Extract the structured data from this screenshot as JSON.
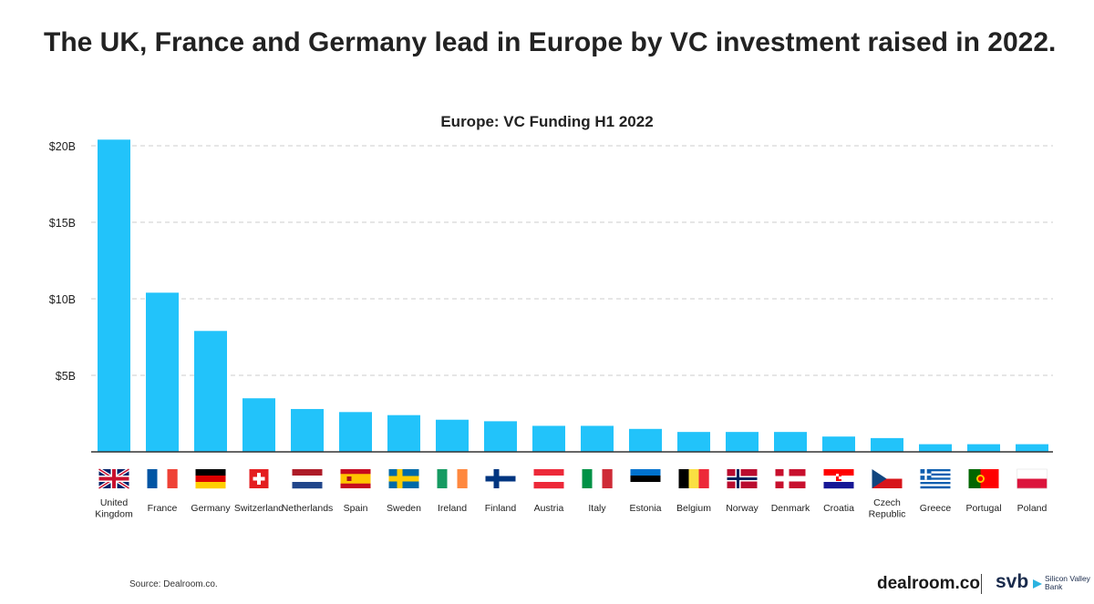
{
  "headline": "The UK, France and Germany lead in Europe by VC investment raised in 2022.",
  "footer": {
    "source": "Source: Dealroom.co.",
    "brand_primary": "dealroom.co",
    "brand_secondary": "svb",
    "brand_secondary_text": "Silicon Valley Bank"
  },
  "colors": {
    "bar": "#22C3FA",
    "grid": "#cccccc",
    "axis": "#333333"
  },
  "chart_data": {
    "type": "bar",
    "title": "Europe: VC Funding H1 2022",
    "xlabel": "",
    "ylabel": "",
    "ylim": [
      0,
      21
    ],
    "yticks": [
      5,
      10,
      15,
      20
    ],
    "ytick_labels": [
      "$5B",
      "$10B",
      "$15B",
      "$20B"
    ],
    "grid": true,
    "categories": [
      {
        "label": "United\nKingdom",
        "flag": "uk"
      },
      {
        "label": "France",
        "flag": "france"
      },
      {
        "label": "Germany",
        "flag": "germany"
      },
      {
        "label": "Switzerland",
        "flag": "switzerland"
      },
      {
        "label": "Netherlands",
        "flag": "netherlands"
      },
      {
        "label": "Spain",
        "flag": "spain"
      },
      {
        "label": "Sweden",
        "flag": "sweden"
      },
      {
        "label": "Ireland",
        "flag": "ireland"
      },
      {
        "label": "Finland",
        "flag": "finland"
      },
      {
        "label": "Austria",
        "flag": "austria"
      },
      {
        "label": "Italy",
        "flag": "italy"
      },
      {
        "label": "Estonia",
        "flag": "estonia"
      },
      {
        "label": "Belgium",
        "flag": "belgium"
      },
      {
        "label": "Norway",
        "flag": "norway"
      },
      {
        "label": "Denmark",
        "flag": "denmark"
      },
      {
        "label": "Croatia",
        "flag": "croatia"
      },
      {
        "label": "Czech\nRepublic",
        "flag": "czech"
      },
      {
        "label": "Greece",
        "flag": "greece"
      },
      {
        "label": "Portugal",
        "flag": "portugal"
      },
      {
        "label": "Poland",
        "flag": "poland"
      }
    ],
    "values": [
      20.4,
      10.4,
      7.9,
      3.5,
      2.8,
      2.6,
      2.4,
      2.1,
      2.0,
      1.7,
      1.7,
      1.5,
      1.3,
      1.3,
      1.3,
      1.0,
      0.9,
      0.5,
      0.5,
      0.5
    ]
  }
}
